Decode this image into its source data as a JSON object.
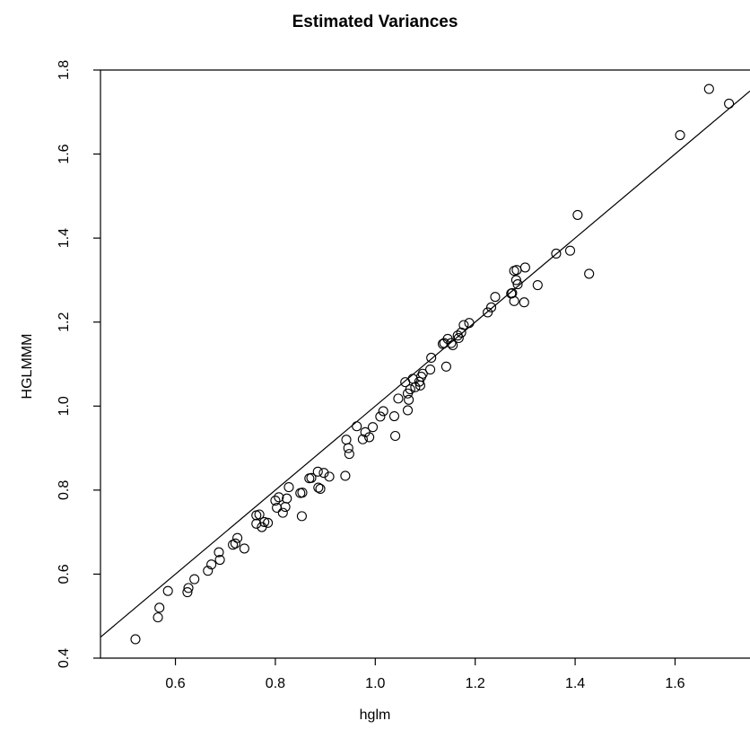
{
  "chart_data": {
    "type": "scatter",
    "title": "Estimated Variances",
    "xlabel": "hglm",
    "ylabel": "HGLMMM",
    "xlim": [
      0.45,
      1.75
    ],
    "ylim": [
      0.4,
      1.8
    ],
    "xticks": [
      0.6,
      0.8,
      1.0,
      1.2,
      1.4,
      1.6
    ],
    "xtick_labels": [
      "0.6",
      "0.8",
      "1.0",
      "1.2",
      "1.4",
      "1.6"
    ],
    "yticks": [
      0.4,
      0.6,
      0.8,
      1.0,
      1.2,
      1.4,
      1.6,
      1.8
    ],
    "ytick_labels": [
      "0.4",
      "0.6",
      "0.8",
      "1.0",
      "1.2",
      "1.4",
      "1.6",
      "1.8"
    ],
    "grid": false,
    "reference_line": {
      "intercept": 0.0,
      "slope": 1.0
    },
    "points": [
      [
        0.52,
        0.445
      ],
      [
        0.565,
        0.497
      ],
      [
        0.568,
        0.52
      ],
      [
        0.585,
        0.56
      ],
      [
        0.624,
        0.557
      ],
      [
        0.626,
        0.567
      ],
      [
        0.638,
        0.588
      ],
      [
        0.665,
        0.608
      ],
      [
        0.672,
        0.623
      ],
      [
        0.687,
        0.652
      ],
      [
        0.689,
        0.634
      ],
      [
        0.715,
        0.67
      ],
      [
        0.72,
        0.673
      ],
      [
        0.724,
        0.686
      ],
      [
        0.738,
        0.661
      ],
      [
        0.762,
        0.72
      ],
      [
        0.762,
        0.74
      ],
      [
        0.768,
        0.742
      ],
      [
        0.773,
        0.712
      ],
      [
        0.778,
        0.724
      ],
      [
        0.785,
        0.722
      ],
      [
        0.8,
        0.775
      ],
      [
        0.803,
        0.758
      ],
      [
        0.807,
        0.783
      ],
      [
        0.815,
        0.746
      ],
      [
        0.82,
        0.76
      ],
      [
        0.823,
        0.78
      ],
      [
        0.827,
        0.807
      ],
      [
        0.85,
        0.793
      ],
      [
        0.853,
        0.738
      ],
      [
        0.854,
        0.794
      ],
      [
        0.868,
        0.828
      ],
      [
        0.872,
        0.829
      ],
      [
        0.885,
        0.844
      ],
      [
        0.886,
        0.806
      ],
      [
        0.89,
        0.803
      ],
      [
        0.897,
        0.841
      ],
      [
        0.908,
        0.832
      ],
      [
        0.94,
        0.834
      ],
      [
        0.942,
        0.92
      ],
      [
        0.946,
        0.9
      ],
      [
        0.948,
        0.886
      ],
      [
        0.963,
        0.952
      ],
      [
        0.975,
        0.921
      ],
      [
        0.98,
        0.938
      ],
      [
        0.988,
        0.926
      ],
      [
        0.995,
        0.95
      ],
      [
        1.01,
        0.975
      ],
      [
        1.016,
        0.988
      ],
      [
        1.038,
        0.976
      ],
      [
        1.04,
        0.929
      ],
      [
        1.046,
        1.018
      ],
      [
        1.06,
        1.057
      ],
      [
        1.065,
        1.03
      ],
      [
        1.065,
        0.99
      ],
      [
        1.067,
        1.015
      ],
      [
        1.07,
        1.04
      ],
      [
        1.075,
        1.065
      ],
      [
        1.08,
        1.045
      ],
      [
        1.088,
        1.058
      ],
      [
        1.09,
        1.049
      ],
      [
        1.092,
        1.07
      ],
      [
        1.095,
        1.077
      ],
      [
        1.11,
        1.087
      ],
      [
        1.112,
        1.115
      ],
      [
        1.135,
        1.148
      ],
      [
        1.138,
        1.15
      ],
      [
        1.142,
        1.094
      ],
      [
        1.145,
        1.16
      ],
      [
        1.152,
        1.15
      ],
      [
        1.155,
        1.145
      ],
      [
        1.165,
        1.168
      ],
      [
        1.167,
        1.162
      ],
      [
        1.172,
        1.175
      ],
      [
        1.177,
        1.193
      ],
      [
        1.188,
        1.198
      ],
      [
        1.225,
        1.223
      ],
      [
        1.232,
        1.235
      ],
      [
        1.24,
        1.26
      ],
      [
        1.272,
        1.268
      ],
      [
        1.274,
        1.269
      ],
      [
        1.278,
        1.25
      ],
      [
        1.278,
        1.322
      ],
      [
        1.282,
        1.3
      ],
      [
        1.283,
        1.324
      ],
      [
        1.285,
        1.29
      ],
      [
        1.298,
        1.247
      ],
      [
        1.3,
        1.33
      ],
      [
        1.325,
        1.288
      ],
      [
        1.362,
        1.363
      ],
      [
        1.39,
        1.37
      ],
      [
        1.405,
        1.455
      ],
      [
        1.428,
        1.315
      ],
      [
        1.61,
        1.645
      ],
      [
        1.668,
        1.755
      ],
      [
        1.708,
        1.72
      ]
    ]
  }
}
